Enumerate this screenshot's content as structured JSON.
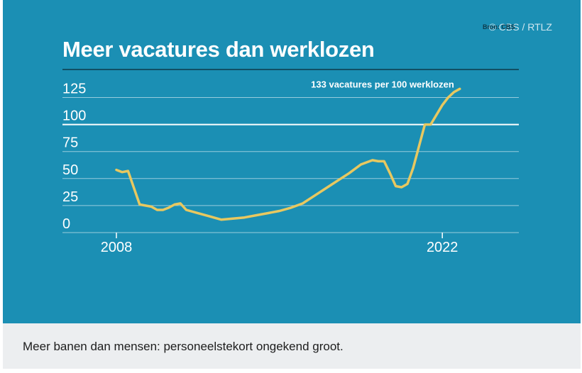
{
  "figure": {
    "credit": "© CBS / RTLZ",
    "source": "Bron: CBS",
    "title": "Meer vacatures dan werklozen"
  },
  "caption": "Meer banen dan mensen: personeelstekort ongekend groot.",
  "colors": {
    "background": "#1b8fb4",
    "line": "#e8c860",
    "grid": "#ffffff"
  },
  "chart_data": {
    "type": "line",
    "title": "Meer vacatures dan werklozen",
    "xlabel": "",
    "ylabel": "",
    "ylim": [
      0,
      133
    ],
    "xlim": [
      2008,
      2023
    ],
    "x_tick_labels": [
      {
        "value": 2008,
        "label": "2008"
      },
      {
        "value": 2022,
        "label": "2022"
      }
    ],
    "y_ticks": [
      0,
      25,
      50,
      75,
      100,
      125
    ],
    "highlight_line": 100,
    "grid": true,
    "annotation": {
      "text": "133 vacatures per 100 werklozen",
      "x": 2022.75,
      "y": 133
    },
    "series": [
      {
        "x": [
          2008.0,
          2008.25,
          2008.5,
          2009.0,
          2009.5,
          2009.75,
          2010.0,
          2010.25,
          2010.5,
          2010.75,
          2011.0,
          2011.5,
          2012.0,
          2012.5,
          2013.0,
          2013.5,
          2014.0,
          2014.5,
          2015.0,
          2015.5,
          2016.0,
          2016.5,
          2017.0,
          2017.5,
          2018.0,
          2018.5,
          2019.0,
          2019.25,
          2019.5,
          2019.75,
          2020.0,
          2020.25,
          2020.5,
          2020.75,
          2021.0,
          2021.25,
          2021.5,
          2022.0,
          2022.25,
          2022.5,
          2022.75
        ],
        "values": [
          58,
          56,
          57,
          26,
          24,
          21,
          21,
          23,
          26,
          27,
          21,
          18,
          15,
          12,
          13,
          14,
          16,
          18,
          20,
          23,
          27,
          34,
          41,
          48,
          55,
          63,
          67,
          66,
          66,
          55,
          43,
          42,
          45,
          60,
          80,
          100,
          100,
          118,
          125,
          130,
          133
        ]
      }
    ]
  }
}
